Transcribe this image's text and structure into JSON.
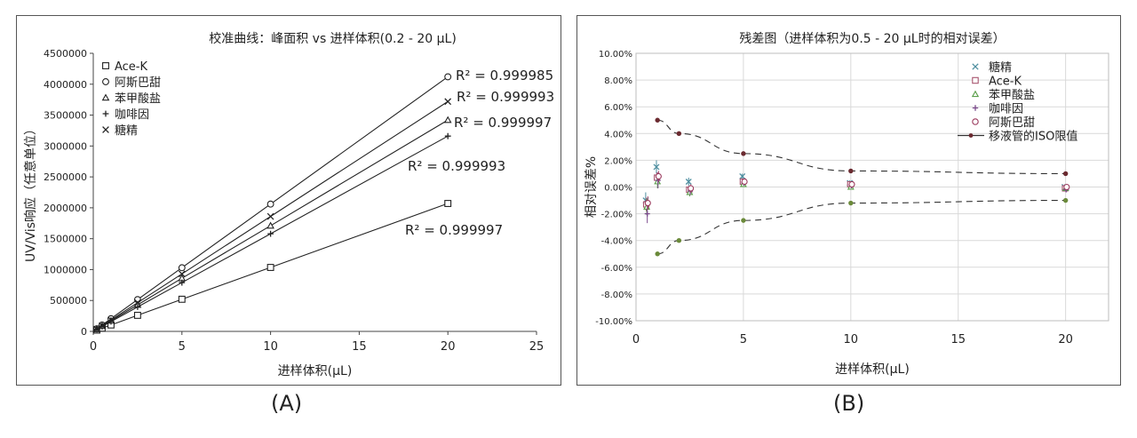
{
  "chart_data": [
    {
      "type": "scatter",
      "title": "校准曲线：峰面积 vs 进样体积(0.2 - 20 µL)",
      "xlabel": "进样体积(µL)",
      "ylabel": "UV/Vis响应（任意单位）",
      "xlim": [
        0,
        25
      ],
      "ylim": [
        0,
        4500000
      ],
      "xticks": [
        "0",
        "5",
        "10",
        "15",
        "20",
        "25"
      ],
      "yticks": [
        "0",
        "500000",
        "1000000",
        "1500000",
        "2000000",
        "2500000",
        "3000000",
        "3500000",
        "4000000",
        "4500000"
      ],
      "grid": false,
      "legend_position": "top-left",
      "series": [
        {
          "name": "Ace-K",
          "marker": "square",
          "x": [
            0.2,
            0.5,
            1,
            2.5,
            5,
            10,
            20
          ],
          "values": [
            21000,
            52000,
            104000,
            260000,
            520000,
            1035000,
            2070000
          ],
          "r2": "R² = 0.999997"
        },
        {
          "name": "阿斯巴甜",
          "marker": "circle",
          "x": [
            0.2,
            0.5,
            1,
            2.5,
            5,
            10,
            20
          ],
          "values": [
            42000,
            103000,
            206000,
            515000,
            1030000,
            2060000,
            4120000
          ],
          "r2": "R² = 0.999993"
        },
        {
          "name": "苯甲酸盐",
          "marker": "triangle",
          "x": [
            0.2,
            0.5,
            1,
            2.5,
            5,
            10,
            20
          ],
          "values": [
            35000,
            86000,
            172000,
            430000,
            860000,
            1710000,
            3420000
          ],
          "r2": "R² = 0.999997"
        },
        {
          "name": "咖啡因",
          "marker": "plus",
          "x": [
            0.2,
            0.5,
            1,
            2.5,
            5,
            10,
            20
          ],
          "values": [
            32000,
            79000,
            158000,
            395000,
            790000,
            1580000,
            3160000
          ],
          "r2": "R² = 0.999993"
        },
        {
          "name": "糖精",
          "marker": "cross",
          "x": [
            0.2,
            0.5,
            1,
            2.5,
            5,
            10,
            20
          ],
          "values": [
            37000,
            93000,
            186000,
            465000,
            930000,
            1860000,
            3720000
          ],
          "r2": "R² = 0.999985"
        }
      ]
    },
    {
      "type": "scatter",
      "title": "残差图（进样体积为0.5 - 20 µL时的相对误差）",
      "xlabel": "进样体积(µL)",
      "ylabel": "相对误差%",
      "xlim": [
        0,
        22
      ],
      "ylim": [
        -10,
        10
      ],
      "xticks": [
        "0",
        "5",
        "10",
        "15",
        "20"
      ],
      "yticks": [
        "-10.00%",
        "-8.00%",
        "-6.00%",
        "-4.00%",
        "-2.00%",
        "0.00%",
        "2.00%",
        "4.00%",
        "6.00%",
        "8.00%",
        "10.00%"
      ],
      "grid": true,
      "legend_position": "top-right",
      "series": [
        {
          "name": "糖精",
          "marker": "cross",
          "color": "#4f8fa0",
          "x": [
            0.5,
            1,
            2.5,
            5,
            10,
            20
          ],
          "values": [
            -1.0,
            1.5,
            0.4,
            0.8,
            0.3,
            0.0
          ],
          "error": [
            0.6,
            0.5,
            0.3,
            0.2,
            0.2,
            0.2
          ]
        },
        {
          "name": "Ace-K",
          "marker": "square",
          "color": "#a8556f",
          "x": [
            0.5,
            1,
            2.5,
            5,
            10,
            20
          ],
          "values": [
            -1.3,
            0.7,
            -0.2,
            0.4,
            0.2,
            -0.1
          ],
          "error": [
            0.5,
            0.4,
            0.3,
            0.2,
            0.2,
            0.2
          ]
        },
        {
          "name": "苯甲酸盐",
          "marker": "triangle",
          "color": "#5a9e4a",
          "x": [
            0.5,
            1,
            2.5,
            5,
            10,
            20
          ],
          "values": [
            -1.5,
            0.4,
            -0.4,
            0.2,
            0.0,
            -0.1
          ],
          "error": [
            0.6,
            0.5,
            0.3,
            0.2,
            0.2,
            0.2
          ]
        },
        {
          "name": "咖啡因",
          "marker": "plus",
          "color": "#7b4a8c",
          "x": [
            0.5,
            1,
            2.5,
            5,
            10,
            20
          ],
          "values": [
            -2.0,
            0.5,
            -0.3,
            0.3,
            0.1,
            -0.2
          ],
          "error": [
            0.7,
            0.6,
            0.3,
            0.2,
            0.2,
            0.2
          ]
        },
        {
          "name": "阿斯巴甜",
          "marker": "circle",
          "color": "#9b3a5e",
          "x": [
            0.5,
            1,
            2.5,
            5,
            10,
            20
          ],
          "values": [
            -1.2,
            0.8,
            -0.1,
            0.4,
            0.2,
            0.0
          ],
          "error": [
            0.5,
            0.4,
            0.3,
            0.2,
            0.2,
            0.2
          ]
        },
        {
          "name": "移液管的ISO限值",
          "marker": "dot",
          "color": "#6b2a30",
          "line": "dashed",
          "x": [
            1,
            2,
            5,
            10,
            20
          ],
          "values": [
            5,
            4,
            2.5,
            1.2,
            1.0
          ],
          "lower_values": [
            -5,
            -4,
            -2.5,
            -1.2,
            -1.0
          ],
          "lower_color": "#6b8a3a"
        }
      ]
    }
  ],
  "panel_labels": [
    "(A)",
    "(B)"
  ]
}
